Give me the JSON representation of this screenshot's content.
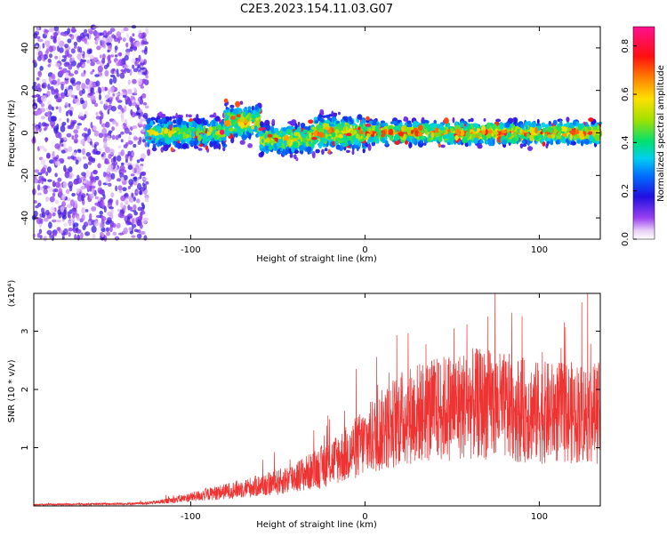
{
  "title": "C2E3.2023.154.11.03.G07",
  "colors": {
    "snr_line": "#ee3333",
    "axis": "#000000",
    "background": "#ffffff"
  },
  "chart_data": [
    {
      "type": "heatmap",
      "xlabel": "Height of straight line (km)",
      "ylabel": "Frequency (Hz)",
      "xlim": [
        -190,
        135
      ],
      "ylim": [
        -50,
        50
      ],
      "xticks": [
        -100,
        0,
        100
      ],
      "yticks": [
        -40,
        -20,
        0,
        20,
        40
      ],
      "colorbar": {
        "label": "Normalized spectral amplitude",
        "range": [
          0.0,
          0.88
        ],
        "ticks": [
          "0.0",
          "0.2",
          "0.4",
          "0.6",
          "0.8"
        ],
        "tick_values": [
          0.0,
          0.2,
          0.4,
          0.6,
          0.8
        ],
        "colormap": "rainbow"
      },
      "bands": [
        {
          "x_range": [
            -190,
            -125
          ],
          "center_hz": 0,
          "halfwidth_hz": 50,
          "amplitude": 0.08,
          "note": "noise"
        },
        {
          "x_range": [
            -125,
            -80
          ],
          "center_hz": 0,
          "halfwidth_hz": 8,
          "amplitude": 0.35
        },
        {
          "x_range": [
            -80,
            -60
          ],
          "center_hz": 5,
          "halfwidth_hz": 9,
          "amplitude": 0.4
        },
        {
          "x_range": [
            -60,
            -30
          ],
          "center_hz": -3,
          "halfwidth_hz": 8,
          "amplitude": 0.38
        },
        {
          "x_range": [
            -30,
            0
          ],
          "center_hz": 0,
          "halfwidth_hz": 9,
          "amplitude": 0.42
        },
        {
          "x_range": [
            0,
            135
          ],
          "center_hz": 0,
          "halfwidth_hz": 6,
          "amplitude": 0.45
        }
      ]
    },
    {
      "type": "line",
      "xlabel": "Height of straight line (km)",
      "ylabel": "SNR (10 * v/v)",
      "y_multiplier": "(x10⁴)",
      "xlim": [
        -190,
        135
      ],
      "ylim": [
        0,
        3.65
      ],
      "xticks": [
        -100,
        0,
        100
      ],
      "yticks": [
        1,
        2,
        3
      ],
      "series": [
        {
          "x": [
            -190,
            -160,
            -130,
            -120,
            -110,
            -100,
            -90,
            -80,
            -70,
            -60,
            -50,
            -40,
            -30,
            -20,
            -10,
            0,
            10,
            20,
            30,
            40,
            50,
            60,
            70,
            80,
            90,
            100,
            110,
            120,
            135
          ],
          "y": [
            0.02,
            0.03,
            0.04,
            0.06,
            0.1,
            0.15,
            0.2,
            0.25,
            0.3,
            0.35,
            0.4,
            0.5,
            0.6,
            0.75,
            0.9,
            1.1,
            1.3,
            1.5,
            1.6,
            1.65,
            1.7,
            1.75,
            1.75,
            1.7,
            1.65,
            1.6,
            1.6,
            1.6,
            1.6
          ]
        }
      ]
    }
  ]
}
